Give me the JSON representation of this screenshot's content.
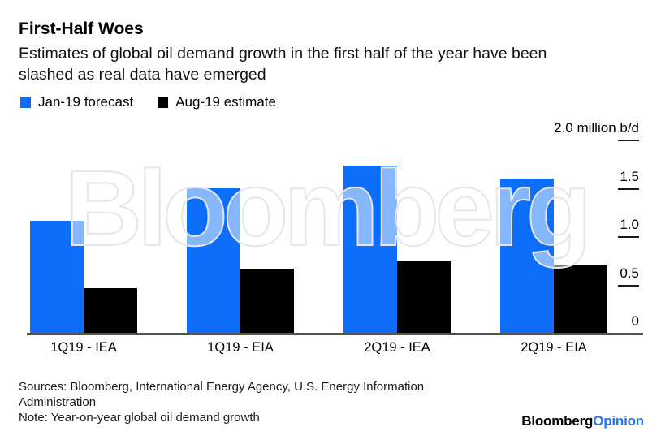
{
  "header": {
    "title": "First-Half Woes",
    "subtitle_lines": [
      "Estimates of global oil demand growth in the first half of the year have been",
      "slashed as real data have emerged"
    ]
  },
  "legend": [
    {
      "label": "Jan-19 forecast",
      "color": "#0d6efa"
    },
    {
      "label": "Aug-19 estimate",
      "color": "#000000"
    }
  ],
  "chart_data": {
    "type": "bar",
    "categories": [
      "1Q19 - IEA",
      "1Q19 - EIA",
      "2Q19 - IEA",
      "2Q19 - EIA"
    ],
    "series": [
      {
        "name": "Jan-19 forecast",
        "color": "#0d6efa",
        "values": [
          1.16,
          1.5,
          1.73,
          1.6
        ]
      },
      {
        "name": "Aug-19 estimate",
        "color": "#000000",
        "values": [
          0.46,
          0.66,
          0.75,
          0.7
        ]
      }
    ],
    "title": "First-Half Woes",
    "xlabel": "",
    "ylabel": "million b/d",
    "ylim": [
      0,
      2.0
    ],
    "grid": false,
    "legend_position": "top-left",
    "yticks": [
      {
        "value": 2.0,
        "label": "2.0 million b/d"
      },
      {
        "value": 1.5,
        "label": "1.5"
      },
      {
        "value": 1.0,
        "label": "1.0"
      },
      {
        "value": 0.5,
        "label": "0.5"
      },
      {
        "value": 0,
        "label": "0"
      }
    ]
  },
  "watermark": "Bloomberg",
  "footer": {
    "sources_lines": [
      "Sources: Bloomberg, International Energy Agency, U.S. Energy Information",
      "Administration"
    ],
    "note": "Note: Year-on-year global oil demand growth",
    "brand_black": "Bloomberg",
    "brand_blue": "Opinion"
  }
}
